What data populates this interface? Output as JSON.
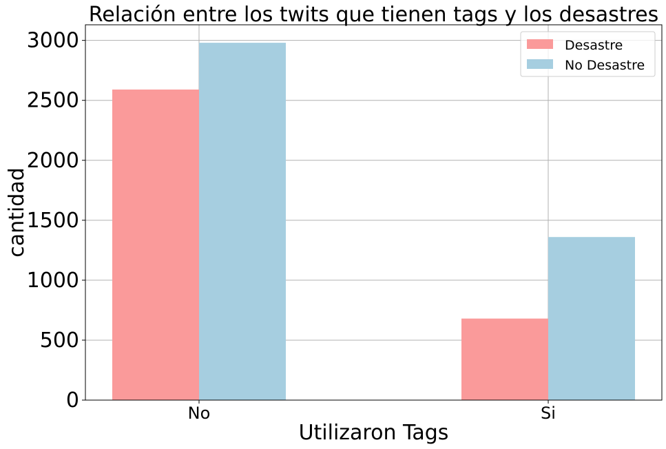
{
  "chart_data": {
    "type": "bar",
    "title": "Relación entre los twits que tienen tags y los desastres",
    "xlabel": "Utilizaron Tags",
    "ylabel": "cantidad",
    "categories": [
      "No",
      "Si"
    ],
    "series": [
      {
        "name": "Desastre",
        "values": [
          2590,
          680
        ],
        "color": "#fa9a9a"
      },
      {
        "name": "No Desastre",
        "values": [
          2980,
          1360
        ],
        "color": "#a6cee0"
      }
    ],
    "ylim": [
      0,
      3130
    ],
    "yticks": [
      0,
      500,
      1000,
      1500,
      2000,
      2500,
      3000
    ],
    "grid": true,
    "legend_position": "top-right"
  }
}
